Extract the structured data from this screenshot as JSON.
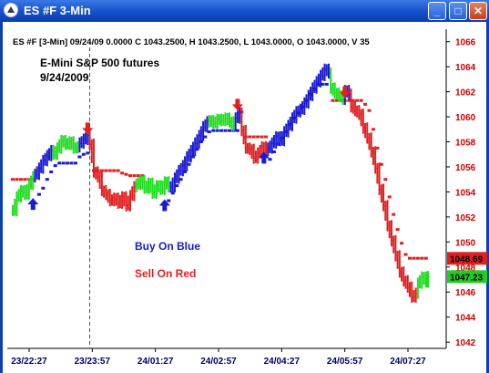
{
  "window": {
    "title": "ES #F  3-Min",
    "minimize": "_",
    "maximize": "□",
    "close": "✕",
    "accent_color": "#1450c8"
  },
  "chart_data": {
    "type": "bar",
    "info_line": "ES #F [3-Min] 09/24/09  0.0000  C 1043.2500, H 1043.2500, L 1043.0000, O 1043.0000, V 35",
    "title": "E-Mini S&P 500 futures",
    "subtitle": "9/24/2009",
    "annotations": [
      "Buy On Blue",
      "Sell On Red"
    ],
    "colors": {
      "blue": "#1a1ad0",
      "red": "#e02020",
      "green": "#22dd22",
      "price_axis": "#cc0000"
    },
    "y_ticks": [
      1042,
      1044,
      1046,
      1048,
      1050,
      1052,
      1054,
      1056,
      1058,
      1060,
      1062,
      1064,
      1066
    ],
    "ylim": [
      1041.5,
      1067.0
    ],
    "x_ticks": [
      "23/22:27",
      "23/23:57",
      "24/01:27",
      "24/02:57",
      "24/04:27",
      "24/05:57",
      "24/07:27"
    ],
    "price_labels": [
      {
        "text": "1048.69",
        "value": 1048.69,
        "color": "#e02020"
      },
      {
        "text": "1047.23",
        "value": 1047.23,
        "color": "#22cc22"
      }
    ],
    "segments": [
      {
        "color": "green",
        "points": [
          [
            0,
            1052.5
          ],
          [
            2,
            1053.6
          ],
          [
            4,
            1054.1
          ],
          [
            6,
            1053.8
          ],
          [
            8,
            1054.6
          ],
          [
            10,
            1055.2
          ]
        ]
      },
      {
        "color": "blue",
        "points": [
          [
            11,
            1055.4
          ],
          [
            13,
            1055.9
          ],
          [
            15,
            1056.5
          ],
          [
            17,
            1056.9
          ],
          [
            19,
            1057.3
          ]
        ]
      },
      {
        "color": "green",
        "points": [
          [
            20,
            1057.0
          ],
          [
            22,
            1057.5
          ],
          [
            24,
            1058.1
          ],
          [
            26,
            1057.8
          ],
          [
            28,
            1058.0
          ],
          [
            30,
            1057.5
          ],
          [
            32,
            1057.6
          ]
        ]
      },
      {
        "color": "blue",
        "points": [
          [
            33,
            1057.9
          ],
          [
            35,
            1058.2
          ],
          [
            37,
            1058.5
          ]
        ]
      },
      {
        "color": "red",
        "points": [
          [
            38,
            1057.8
          ],
          [
            40,
            1055.6
          ],
          [
            42,
            1055.2
          ],
          [
            44,
            1054.1
          ],
          [
            46,
            1053.8
          ],
          [
            48,
            1053.3
          ],
          [
            50,
            1053.5
          ],
          [
            52,
            1053.1
          ],
          [
            54,
            1053.6
          ],
          [
            56,
            1052.9
          ],
          [
            58,
            1053.7
          ],
          [
            60,
            1054.4
          ]
        ]
      },
      {
        "color": "green",
        "points": [
          [
            61,
            1054.6
          ],
          [
            63,
            1054.9
          ],
          [
            65,
            1054.3
          ],
          [
            67,
            1054.7
          ],
          [
            69,
            1053.9
          ],
          [
            71,
            1054.5
          ],
          [
            73,
            1054.2
          ],
          [
            75,
            1054.8
          ],
          [
            77,
            1054.4
          ]
        ]
      },
      {
        "color": "blue",
        "points": [
          [
            78,
            1054.4
          ],
          [
            80,
            1055.1
          ],
          [
            82,
            1055.7
          ],
          [
            84,
            1056.1
          ],
          [
            86,
            1056.8
          ],
          [
            88,
            1057.3
          ],
          [
            90,
            1057.9
          ],
          [
            92,
            1058.5
          ],
          [
            94,
            1059.2
          ],
          [
            96,
            1059.6
          ]
        ]
      },
      {
        "color": "green",
        "points": [
          [
            97,
            1059.7
          ],
          [
            99,
            1059.5
          ],
          [
            101,
            1059.8
          ],
          [
            103,
            1059.7
          ],
          [
            105,
            1059.9
          ],
          [
            107,
            1059.6
          ],
          [
            109,
            1059.3
          ]
        ]
      },
      {
        "color": "blue",
        "points": [
          [
            110,
            1059.9
          ],
          [
            112,
            1060.3
          ]
        ]
      },
      {
        "color": "red",
        "points": [
          [
            113,
            1058.9
          ],
          [
            115,
            1057.5
          ],
          [
            117,
            1057.4
          ],
          [
            119,
            1056.7
          ],
          [
            121,
            1057.1
          ],
          [
            123,
            1057.6
          ],
          [
            125,
            1057.3
          ]
        ]
      },
      {
        "color": "blue",
        "points": [
          [
            126,
            1057.5
          ],
          [
            128,
            1057.9
          ],
          [
            130,
            1058.4
          ],
          [
            132,
            1058.1
          ],
          [
            134,
            1058.8
          ],
          [
            136,
            1059.3
          ],
          [
            138,
            1059.9
          ],
          [
            140,
            1060.4
          ],
          [
            142,
            1060.6
          ],
          [
            144,
            1061.1
          ],
          [
            146,
            1061.7
          ],
          [
            148,
            1062.3
          ],
          [
            150,
            1062.8
          ],
          [
            152,
            1063.3
          ],
          [
            154,
            1063.8
          ],
          [
            156,
            1063.5
          ]
        ]
      },
      {
        "color": "green",
        "points": [
          [
            157,
            1062.3
          ],
          [
            159,
            1061.9
          ],
          [
            161,
            1061.7
          ],
          [
            163,
            1061.4
          ]
        ]
      },
      {
        "color": "blue",
        "points": [
          [
            164,
            1062.1
          ],
          [
            166,
            1061.8
          ]
        ]
      },
      {
        "color": "red",
        "points": [
          [
            167,
            1060.8
          ],
          [
            169,
            1060.5
          ],
          [
            171,
            1060.2
          ],
          [
            173,
            1059.1
          ],
          [
            175,
            1058.3
          ],
          [
            177,
            1057.2
          ],
          [
            179,
            1055.9
          ],
          [
            181,
            1054.2
          ],
          [
            183,
            1052.9
          ],
          [
            185,
            1051.3
          ],
          [
            187,
            1050.1
          ],
          [
            189,
            1048.9
          ],
          [
            191,
            1047.6
          ],
          [
            193,
            1046.9
          ],
          [
            195,
            1046.4
          ],
          [
            197,
            1045.6
          ],
          [
            199,
            1045.9
          ]
        ]
      },
      {
        "color": "green",
        "points": [
          [
            200,
            1046.7
          ],
          [
            202,
            1047.2
          ],
          [
            204,
            1046.8
          ],
          [
            205,
            1047.23
          ]
        ]
      }
    ],
    "stops": [
      {
        "color": "red",
        "points": [
          [
            0,
            1055
          ],
          [
            2,
            1055
          ],
          [
            4,
            1055
          ],
          [
            6,
            1055
          ],
          [
            8,
            1055
          ],
          [
            10,
            1055
          ]
        ]
      },
      {
        "color": "blue",
        "points": [
          [
            13,
            1053.8
          ],
          [
            15,
            1054.3
          ],
          [
            17,
            1055.0
          ],
          [
            19,
            1055.6
          ],
          [
            21,
            1056.1
          ],
          [
            23,
            1056.3
          ],
          [
            25,
            1056.3
          ],
          [
            27,
            1056.3
          ],
          [
            29,
            1056.3
          ],
          [
            31,
            1056.3
          ],
          [
            33,
            1056.8
          ],
          [
            35,
            1057.0
          ],
          [
            37,
            1057.1
          ]
        ]
      },
      {
        "color": "red",
        "points": [
          [
            40,
            1055.7
          ],
          [
            42,
            1055.7
          ],
          [
            44,
            1055.7
          ],
          [
            46,
            1055.7
          ],
          [
            48,
            1055.7
          ],
          [
            50,
            1055.7
          ],
          [
            52,
            1055.7
          ],
          [
            54,
            1055.5
          ],
          [
            56,
            1055.4
          ],
          [
            58,
            1055.3
          ],
          [
            60,
            1055.3
          ],
          [
            62,
            1055.3
          ],
          [
            64,
            1055.3
          ]
        ]
      },
      {
        "color": "blue",
        "points": [
          [
            77,
            1053.3
          ],
          [
            79,
            1053.9
          ],
          [
            81,
            1054.5
          ],
          [
            83,
            1055.0
          ],
          [
            85,
            1055.6
          ],
          [
            87,
            1056.2
          ],
          [
            89,
            1056.8
          ],
          [
            91,
            1057.4
          ],
          [
            93,
            1058.0
          ],
          [
            95,
            1058.4
          ],
          [
            97,
            1058.8
          ],
          [
            99,
            1058.9
          ],
          [
            101,
            1058.9
          ],
          [
            103,
            1058.9
          ],
          [
            105,
            1058.9
          ],
          [
            107,
            1058.9
          ],
          [
            109,
            1058.9
          ],
          [
            111,
            1058.9
          ]
        ]
      },
      {
        "color": "red",
        "points": [
          [
            113,
            1060.4
          ],
          [
            115,
            1058.4
          ],
          [
            117,
            1058.4
          ],
          [
            119,
            1058.4
          ],
          [
            121,
            1058.4
          ],
          [
            123,
            1058.4
          ],
          [
            125,
            1058.4
          ]
        ]
      },
      {
        "color": "blue",
        "points": [
          [
            127,
            1056.6
          ],
          [
            129,
            1057.2
          ],
          [
            131,
            1057.8
          ],
          [
            133,
            1058.3
          ],
          [
            135,
            1058.8
          ],
          [
            137,
            1059.4
          ],
          [
            139,
            1059.9
          ],
          [
            141,
            1060.3
          ],
          [
            143,
            1060.8
          ],
          [
            145,
            1061.3
          ],
          [
            147,
            1061.8
          ],
          [
            149,
            1062.2
          ],
          [
            151,
            1062.6
          ],
          [
            153,
            1062.6
          ],
          [
            155,
            1062.6
          ]
        ]
      },
      {
        "color": "red",
        "points": [
          [
            158,
            1061.3
          ],
          [
            160,
            1061.3
          ],
          [
            162,
            1061.3
          ],
          [
            164,
            1061.3
          ],
          [
            166,
            1061.3
          ],
          [
            168,
            1061.3
          ],
          [
            170,
            1061.3
          ],
          [
            172,
            1061.3
          ],
          [
            174,
            1061.0
          ],
          [
            176,
            1060.5
          ],
          [
            178,
            1059.0
          ],
          [
            180,
            1057.5
          ],
          [
            182,
            1056.2
          ],
          [
            184,
            1055.0
          ],
          [
            186,
            1053.6
          ],
          [
            188,
            1052.2
          ],
          [
            190,
            1051.0
          ],
          [
            192,
            1049.9
          ],
          [
            194,
            1049.0
          ],
          [
            196,
            1048.7
          ],
          [
            198,
            1048.7
          ],
          [
            200,
            1048.7
          ],
          [
            202,
            1048.7
          ],
          [
            204,
            1048.7
          ]
        ]
      }
    ],
    "signals": [
      {
        "type": "buy",
        "x": 10,
        "y": 1053.0
      },
      {
        "type": "sell",
        "x": 37,
        "y": 1059.1
      },
      {
        "type": "buy",
        "x": 75,
        "y": 1052.9
      },
      {
        "type": "sell",
        "x": 111,
        "y": 1061.0
      },
      {
        "type": "buy",
        "x": 124,
        "y": 1056.7
      },
      {
        "type": "sell",
        "x": 164,
        "y": 1062.0
      }
    ],
    "vline": 38,
    "xlim": [
      0,
      205
    ]
  }
}
